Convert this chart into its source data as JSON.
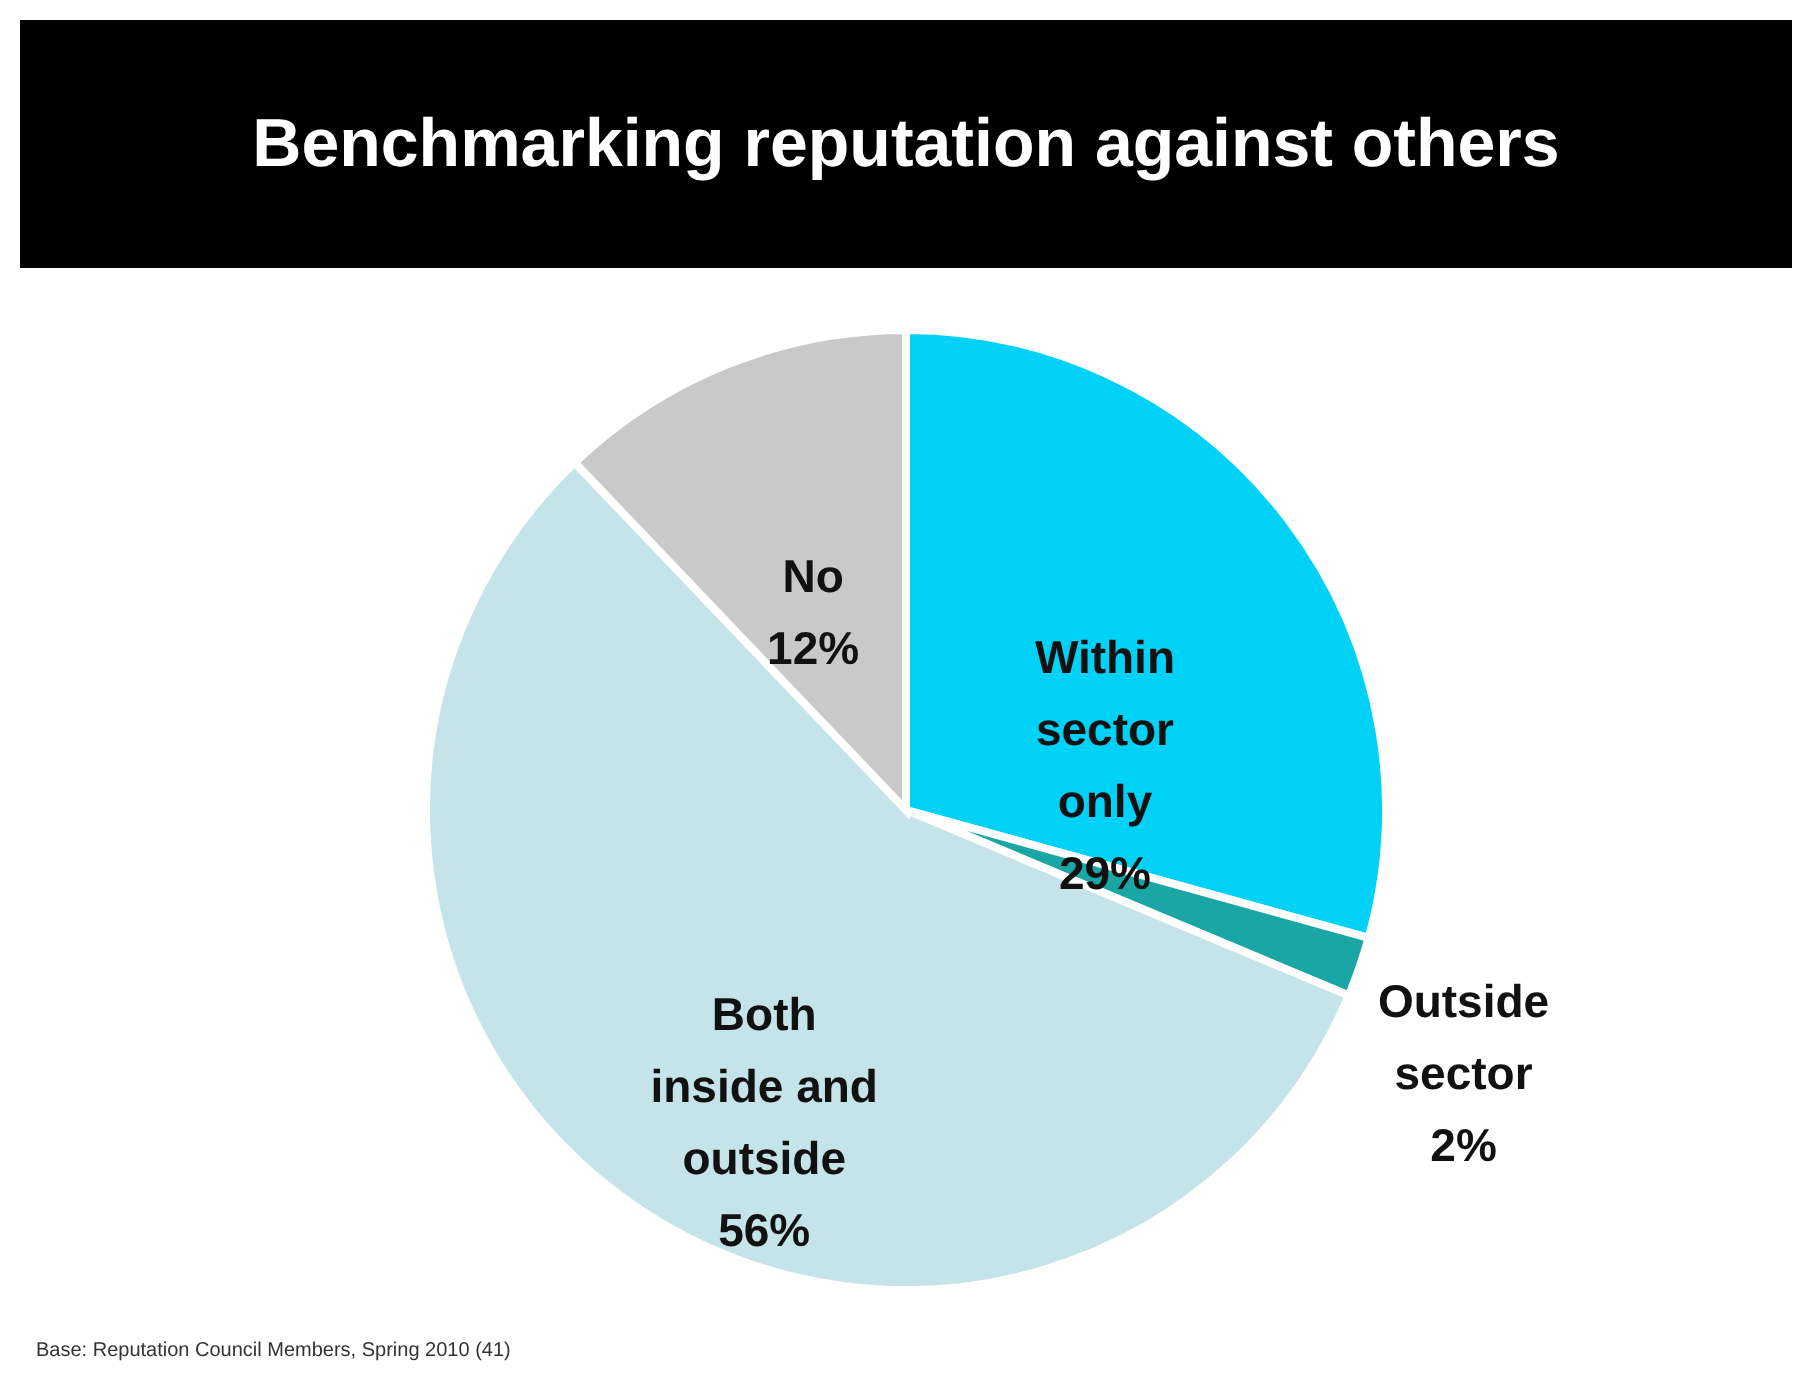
{
  "chart_data": {
    "type": "pie",
    "title": "Benchmarking reputation against others",
    "categories": [
      "Within sector only",
      "Outside sector",
      "Both inside and outside",
      "No"
    ],
    "values": [
      29,
      2,
      56,
      12
    ],
    "value_labels": [
      "29%",
      "2%",
      "56%",
      "12%"
    ],
    "colors": [
      "#00d2f7",
      "#1aa6a4",
      "#c5e4e9",
      "#c9c9c9"
    ],
    "annotations": [
      "Base: Reputation Council Members, Spring 2010 (41)"
    ]
  }
}
